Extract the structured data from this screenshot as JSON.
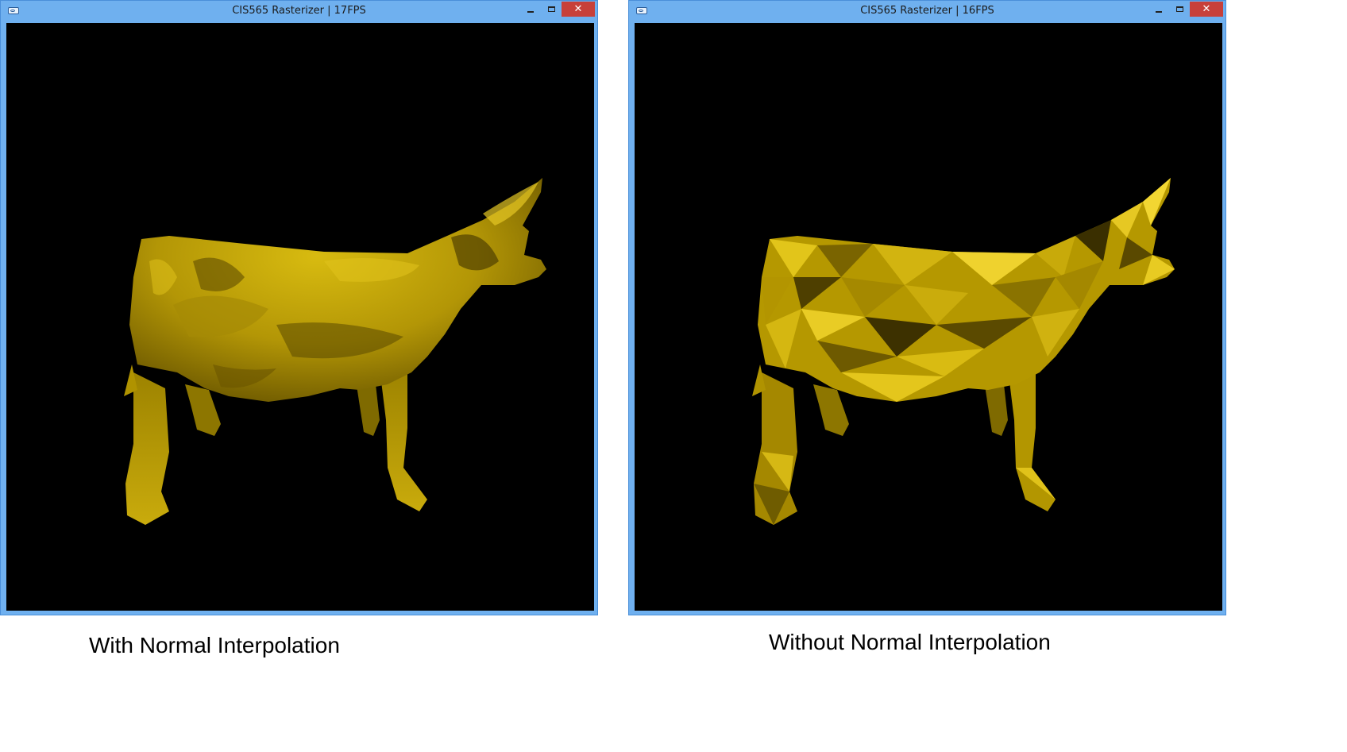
{
  "windows": [
    {
      "title": "CIS565 Rasterizer | 17FPS",
      "close_glyph": "✕"
    },
    {
      "title": "CIS565 Rasterizer | 16FPS",
      "close_glyph": "✕"
    }
  ],
  "captions": {
    "left": "With Normal Interpolation",
    "right": "Without Normal Interpolation"
  },
  "colors": {
    "window_frame": "#6fb0ef",
    "close_button": "#c7403a",
    "viewport_background": "#000000",
    "model_color": "#d2b300"
  },
  "icons": [
    "app-icon",
    "minimize-icon",
    "maximize-icon",
    "close-icon"
  ]
}
